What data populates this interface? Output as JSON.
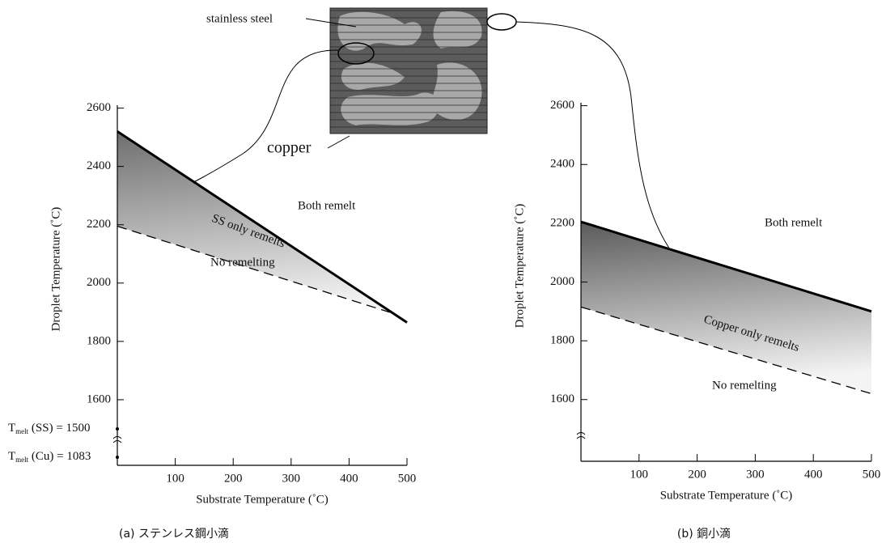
{
  "chart_data": [
    {
      "type": "line",
      "xlabel": "Substrate Temperature (˚C)",
      "ylabel": "Droplet Temperature (˚C)",
      "caption": "(a) ステンレス鋼小滴",
      "xlim": [
        0,
        500
      ],
      "xticks": [
        100,
        200,
        300,
        400,
        500
      ],
      "ylim": [
        1375,
        2610
      ],
      "yticks": [
        1600,
        1800,
        2000,
        2200,
        2400,
        2600
      ],
      "series": [
        {
          "style": "solid",
          "color": "#000000",
          "x": [
            0,
            500
          ],
          "values": [
            2520,
            1865
          ]
        },
        {
          "style": "dashed",
          "color": "#000000",
          "x": [
            0,
            470
          ],
          "values": [
            2195,
            1900
          ]
        }
      ],
      "shade_colors": [
        "#6e6e6e",
        "#f4f4f4"
      ],
      "region_labels": [
        "Both remelt",
        "SS only remelts",
        "No remelting"
      ],
      "melt_labels": [
        {
          "symbol": "T",
          "subscript": "melt",
          "rest": " (SS) = 1500"
        },
        {
          "symbol": "T",
          "subscript": "melt",
          "rest": " (Cu) = 1083"
        }
      ]
    },
    {
      "type": "line",
      "xlabel": "Substrate Temperature (˚C)",
      "ylabel": "Droplet Temperature (˚C)",
      "caption": "(b) 銅小滴",
      "xlim": [
        0,
        500
      ],
      "xticks": [
        100,
        200,
        300,
        400,
        500
      ],
      "ylim": [
        1390,
        2610
      ],
      "yticks": [
        1600,
        1800,
        2000,
        2200,
        2400,
        2600
      ],
      "series": [
        {
          "style": "solid",
          "color": "#000000",
          "x": [
            0,
            500
          ],
          "values": [
            2205,
            1900
          ]
        },
        {
          "style": "dashed",
          "color": "#000000",
          "x": [
            0,
            500
          ],
          "values": [
            1915,
            1620
          ]
        }
      ],
      "shade_colors": [
        "#5a5a5a",
        "#f4f4f4"
      ],
      "region_labels": [
        "Both remelt",
        "Copper only remelts",
        "No remelting"
      ]
    }
  ],
  "inset": {
    "labels": [
      "stainless steel",
      "copper"
    ]
  }
}
